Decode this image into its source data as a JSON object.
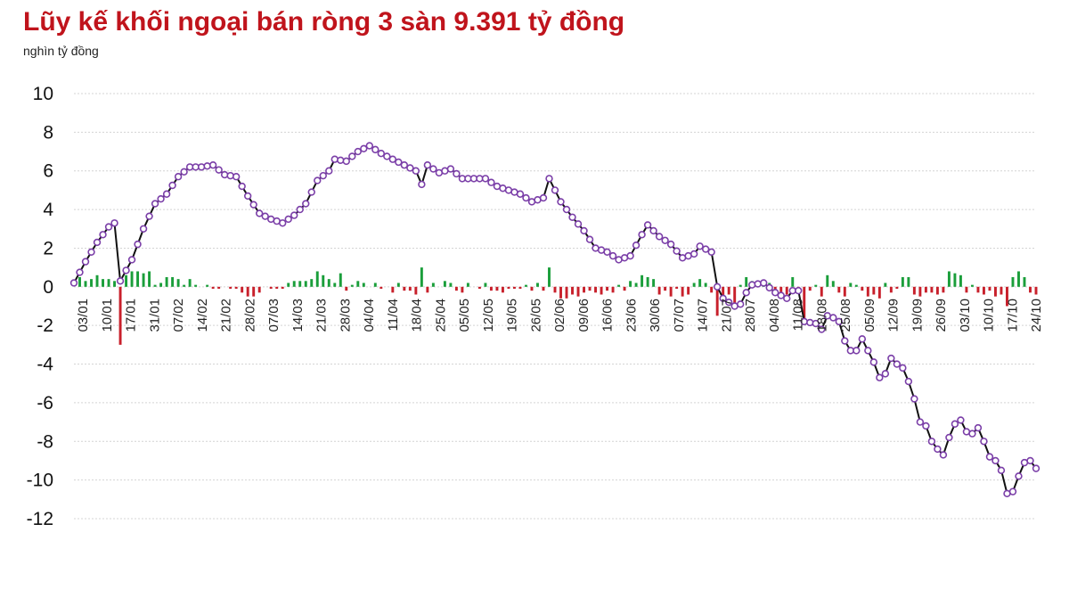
{
  "title": "Lũy kế khối ngoại bán ròng 3 sàn 9.391 tỷ đồng",
  "unit": "nghìn tỷ đồng",
  "chart_data": {
    "type": "bar+line",
    "ylim": [
      -12,
      10
    ],
    "yticks": [
      10,
      8,
      6,
      4,
      2,
      0,
      -2,
      -4,
      -6,
      -8,
      -10,
      -12
    ],
    "grid": true,
    "x_tick_labels": [
      "03/01",
      "10/01",
      "17/01",
      "31/01",
      "07/02",
      "14/02",
      "21/02",
      "28/02",
      "07/03",
      "14/03",
      "21/03",
      "28/03",
      "04/04",
      "11/04",
      "18/04",
      "25/04",
      "05/05",
      "12/05",
      "19/05",
      "26/05",
      "02/06",
      "09/06",
      "16/06",
      "23/06",
      "30/06",
      "07/07",
      "14/07",
      "21/07",
      "28/07",
      "04/08",
      "11/08",
      "18/08",
      "25/08",
      "05/09",
      "12/09",
      "19/09",
      "26/09",
      "03/10",
      "10/10",
      "17/10",
      "24/10"
    ],
    "colors": {
      "line": "#111111",
      "marker_fill": "#ffffff",
      "marker_edge": "#7b3fa8",
      "bar_positive": "#1a9e3a",
      "bar_negative": "#c8202b",
      "title": "#c0141c"
    },
    "cumulative_anchors": [
      [
        0,
        0.2
      ],
      [
        2,
        1.3
      ],
      [
        4,
        2.3
      ],
      [
        6,
        3.1
      ],
      [
        7,
        3.3
      ],
      [
        8,
        0.3
      ],
      [
        10,
        1.4
      ],
      [
        12,
        3.0
      ],
      [
        14,
        4.3
      ],
      [
        16,
        4.8
      ],
      [
        18,
        5.7
      ],
      [
        20,
        6.2
      ],
      [
        22,
        6.2
      ],
      [
        24,
        6.3
      ],
      [
        26,
        5.8
      ],
      [
        28,
        5.7
      ],
      [
        30,
        4.7
      ],
      [
        32,
        3.8
      ],
      [
        34,
        3.5
      ],
      [
        36,
        3.3
      ],
      [
        38,
        3.7
      ],
      [
        40,
        4.3
      ],
      [
        42,
        5.5
      ],
      [
        44,
        6.0
      ],
      [
        45,
        6.6
      ],
      [
        47,
        6.5
      ],
      [
        49,
        7.0
      ],
      [
        51,
        7.3
      ],
      [
        53,
        6.9
      ],
      [
        55,
        6.6
      ],
      [
        57,
        6.3
      ],
      [
        59,
        6.0
      ],
      [
        60,
        5.3
      ],
      [
        61,
        6.3
      ],
      [
        63,
        5.9
      ],
      [
        65,
        6.1
      ],
      [
        67,
        5.6
      ],
      [
        69,
        5.6
      ],
      [
        71,
        5.6
      ],
      [
        73,
        5.2
      ],
      [
        75,
        5.0
      ],
      [
        77,
        4.8
      ],
      [
        79,
        4.4
      ],
      [
        81,
        4.6
      ],
      [
        82,
        5.6
      ],
      [
        84,
        4.4
      ],
      [
        86,
        3.6
      ],
      [
        88,
        2.9
      ],
      [
        90,
        2.0
      ],
      [
        92,
        1.8
      ],
      [
        94,
        1.4
      ],
      [
        96,
        1.6
      ],
      [
        98,
        2.7
      ],
      [
        99,
        3.2
      ],
      [
        101,
        2.6
      ],
      [
        103,
        2.2
      ],
      [
        105,
        1.5
      ],
      [
        107,
        1.7
      ],
      [
        108,
        2.1
      ],
      [
        110,
        1.8
      ],
      [
        111,
        0.0
      ],
      [
        112,
        -0.6
      ],
      [
        114,
        -1.0
      ],
      [
        115,
        -0.9
      ],
      [
        116,
        -0.3
      ],
      [
        117,
        0.1
      ],
      [
        119,
        0.2
      ],
      [
        121,
        -0.3
      ],
      [
        123,
        -0.6
      ],
      [
        124,
        -0.2
      ],
      [
        125,
        -0.2
      ],
      [
        126,
        -1.8
      ],
      [
        128,
        -1.9
      ],
      [
        129,
        -2.2
      ],
      [
        130,
        -1.5
      ],
      [
        131,
        -1.6
      ],
      [
        132,
        -1.8
      ],
      [
        133,
        -2.8
      ],
      [
        134,
        -3.3
      ],
      [
        135,
        -3.3
      ],
      [
        136,
        -2.7
      ],
      [
        137,
        -3.3
      ],
      [
        138,
        -3.9
      ],
      [
        139,
        -4.7
      ],
      [
        140,
        -4.5
      ],
      [
        141,
        -3.7
      ],
      [
        142,
        -4.0
      ],
      [
        143,
        -4.2
      ],
      [
        144,
        -4.9
      ],
      [
        145,
        -5.8
      ],
      [
        146,
        -7.0
      ],
      [
        147,
        -7.2
      ],
      [
        148,
        -8.0
      ],
      [
        149,
        -8.4
      ],
      [
        150,
        -8.7
      ],
      [
        151,
        -7.8
      ],
      [
        152,
        -7.1
      ],
      [
        153,
        -6.9
      ],
      [
        154,
        -7.5
      ],
      [
        155,
        -7.6
      ],
      [
        156,
        -7.3
      ],
      [
        157,
        -8.0
      ],
      [
        158,
        -8.8
      ],
      [
        159,
        -9.0
      ],
      [
        160,
        -9.5
      ],
      [
        161,
        -10.7
      ],
      [
        162,
        -10.6
      ],
      [
        163,
        -9.8
      ],
      [
        164,
        -9.1
      ],
      [
        165,
        -9.0
      ],
      [
        166,
        -9.4
      ]
    ],
    "bars": [
      [
        1,
        0.5
      ],
      [
        2,
        0.3
      ],
      [
        3,
        0.4
      ],
      [
        4,
        0.6
      ],
      [
        5,
        0.4
      ],
      [
        6,
        0.4
      ],
      [
        7,
        0.3
      ],
      [
        8,
        -3.0
      ],
      [
        9,
        0.6
      ],
      [
        10,
        0.8
      ],
      [
        11,
        0.8
      ],
      [
        12,
        0.7
      ],
      [
        13,
        0.8
      ],
      [
        14,
        0.1
      ],
      [
        15,
        0.2
      ],
      [
        16,
        0.5
      ],
      [
        17,
        0.5
      ],
      [
        18,
        0.4
      ],
      [
        19,
        0.1
      ],
      [
        20,
        0.4
      ],
      [
        21,
        0.1
      ],
      [
        23,
        0.1
      ],
      [
        24,
        -0.1
      ],
      [
        25,
        -0.1
      ],
      [
        27,
        -0.1
      ],
      [
        28,
        -0.1
      ],
      [
        29,
        -0.3
      ],
      [
        30,
        -0.5
      ],
      [
        31,
        -0.5
      ],
      [
        32,
        -0.3
      ],
      [
        34,
        -0.1
      ],
      [
        35,
        -0.1
      ],
      [
        36,
        -0.1
      ],
      [
        37,
        0.2
      ],
      [
        38,
        0.3
      ],
      [
        39,
        0.3
      ],
      [
        40,
        0.3
      ],
      [
        41,
        0.4
      ],
      [
        42,
        0.8
      ],
      [
        43,
        0.6
      ],
      [
        44,
        0.4
      ],
      [
        45,
        0.2
      ],
      [
        46,
        0.7
      ],
      [
        47,
        -0.2
      ],
      [
        48,
        0.1
      ],
      [
        49,
        0.3
      ],
      [
        50,
        0.2
      ],
      [
        52,
        0.2
      ],
      [
        53,
        -0.1
      ],
      [
        55,
        -0.3
      ],
      [
        56,
        0.2
      ],
      [
        57,
        -0.2
      ],
      [
        58,
        -0.2
      ],
      [
        59,
        -0.4
      ],
      [
        60,
        1.0
      ],
      [
        61,
        -0.3
      ],
      [
        62,
        0.2
      ],
      [
        64,
        0.3
      ],
      [
        65,
        0.2
      ],
      [
        66,
        -0.2
      ],
      [
        67,
        -0.3
      ],
      [
        68,
        0.2
      ],
      [
        70,
        -0.1
      ],
      [
        71,
        0.2
      ],
      [
        72,
        -0.2
      ],
      [
        73,
        -0.2
      ],
      [
        74,
        -0.3
      ],
      [
        75,
        -0.1
      ],
      [
        76,
        -0.1
      ],
      [
        77,
        -0.1
      ],
      [
        78,
        0.1
      ],
      [
        79,
        -0.2
      ],
      [
        80,
        0.2
      ],
      [
        81,
        -0.2
      ],
      [
        82,
        1.0
      ],
      [
        83,
        -0.3
      ],
      [
        84,
        -0.6
      ],
      [
        85,
        -0.6
      ],
      [
        86,
        -0.4
      ],
      [
        87,
        -0.5
      ],
      [
        88,
        -0.3
      ],
      [
        89,
        -0.2
      ],
      [
        90,
        -0.3
      ],
      [
        91,
        -0.4
      ],
      [
        92,
        -0.2
      ],
      [
        93,
        -0.3
      ],
      [
        94,
        0.1
      ],
      [
        95,
        -0.2
      ],
      [
        96,
        0.3
      ],
      [
        97,
        0.2
      ],
      [
        98,
        0.6
      ],
      [
        99,
        0.5
      ],
      [
        100,
        0.4
      ],
      [
        101,
        -0.4
      ],
      [
        102,
        -0.2
      ],
      [
        103,
        -0.5
      ],
      [
        104,
        -0.1
      ],
      [
        105,
        -0.5
      ],
      [
        106,
        -0.4
      ],
      [
        107,
        0.2
      ],
      [
        108,
        0.4
      ],
      [
        109,
        0.2
      ],
      [
        110,
        -0.3
      ],
      [
        111,
        -1.5
      ],
      [
        112,
        -0.5
      ],
      [
        113,
        -0.4
      ],
      [
        114,
        -1.0
      ],
      [
        115,
        0.1
      ],
      [
        116,
        0.5
      ],
      [
        117,
        0.3
      ],
      [
        118,
        0.3
      ],
      [
        119,
        0.2
      ],
      [
        120,
        0.2
      ],
      [
        121,
        -0.4
      ],
      [
        122,
        -0.6
      ],
      [
        123,
        -0.4
      ],
      [
        124,
        0.5
      ],
      [
        125,
        -0.3
      ],
      [
        126,
        -1.8
      ],
      [
        127,
        -0.2
      ],
      [
        128,
        0.1
      ],
      [
        129,
        -0.5
      ],
      [
        130,
        0.6
      ],
      [
        131,
        0.3
      ],
      [
        132,
        -0.3
      ],
      [
        133,
        -0.5
      ],
      [
        134,
        0.2
      ],
      [
        135,
        0.1
      ],
      [
        136,
        -0.2
      ],
      [
        137,
        -0.5
      ],
      [
        138,
        -0.4
      ],
      [
        139,
        -0.6
      ],
      [
        140,
        0.2
      ],
      [
        141,
        -0.3
      ],
      [
        142,
        -0.1
      ],
      [
        143,
        0.5
      ],
      [
        144,
        0.5
      ],
      [
        145,
        -0.4
      ],
      [
        146,
        -0.5
      ],
      [
        147,
        -0.3
      ],
      [
        148,
        -0.3
      ],
      [
        149,
        -0.4
      ],
      [
        150,
        -0.3
      ],
      [
        151,
        0.8
      ],
      [
        152,
        0.7
      ],
      [
        153,
        0.6
      ],
      [
        154,
        -0.3
      ],
      [
        155,
        0.1
      ],
      [
        156,
        -0.3
      ],
      [
        157,
        -0.4
      ],
      [
        158,
        -0.2
      ],
      [
        159,
        -0.5
      ],
      [
        160,
        -0.4
      ],
      [
        161,
        -1.0
      ],
      [
        162,
        0.5
      ],
      [
        163,
        0.8
      ],
      [
        164,
        0.5
      ],
      [
        165,
        -0.3
      ],
      [
        166,
        -0.4
      ]
    ]
  }
}
